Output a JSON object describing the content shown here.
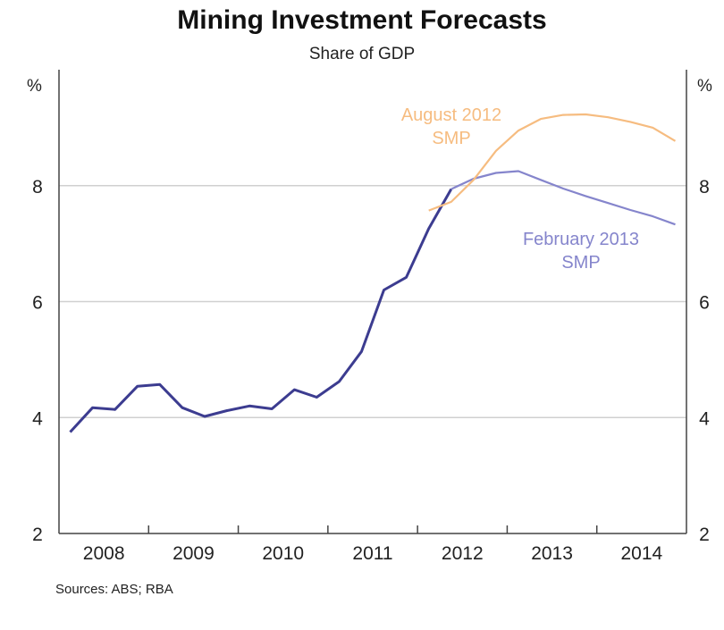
{
  "chart_data": {
    "type": "line",
    "title": "Mining Investment Forecasts",
    "subtitle": "Share of GDP",
    "ylabel_left": "%",
    "ylabel_right": "%",
    "ylim": [
      2,
      10
    ],
    "yticks": [
      2,
      4,
      6,
      8
    ],
    "xlim": [
      2008,
      2015
    ],
    "xticks": [
      "2008",
      "2009",
      "2010",
      "2011",
      "2012",
      "2013",
      "2014"
    ],
    "grid": true,
    "source": "Sources: ABS; RBA",
    "series": [
      {
        "key": "actual",
        "color": "#3c3c90",
        "x": [
          "2008-Q1",
          "2008-Q2",
          "2008-Q3",
          "2008-Q4",
          "2009-Q1",
          "2009-Q2",
          "2009-Q3",
          "2009-Q4",
          "2010-Q1",
          "2010-Q2",
          "2010-Q3",
          "2010-Q4",
          "2011-Q1",
          "2011-Q2",
          "2011-Q3",
          "2011-Q4",
          "2012-Q1",
          "2012-Q2"
        ],
        "values": [
          3.75,
          4.17,
          4.14,
          4.54,
          4.57,
          4.17,
          4.02,
          4.12,
          4.2,
          4.15,
          4.48,
          4.35,
          4.62,
          5.14,
          6.2,
          6.42,
          7.26,
          7.94
        ]
      },
      {
        "name": "February 2013 SMP",
        "label": [
          "February 2013",
          "SMP"
        ],
        "color": "#8585cc",
        "x": [
          "2012-Q2",
          "2012-Q3",
          "2012-Q4",
          "2013-Q1",
          "2013-Q2",
          "2013-Q3",
          "2013-Q4",
          "2014-Q1",
          "2014-Q2",
          "2014-Q3",
          "2014-Q4"
        ],
        "values": [
          7.94,
          8.12,
          8.22,
          8.25,
          8.1,
          7.95,
          7.82,
          7.7,
          7.58,
          7.47,
          7.33
        ]
      },
      {
        "name": "August 2012 SMP",
        "label": [
          "August 2012",
          "SMP"
        ],
        "color": "#f6bc80",
        "x": [
          "2012-Q1",
          "2012-Q2",
          "2012-Q3",
          "2012-Q4",
          "2013-Q1",
          "2013-Q2",
          "2013-Q3",
          "2013-Q4",
          "2014-Q1",
          "2014-Q2",
          "2014-Q3",
          "2014-Q4"
        ],
        "values": [
          7.57,
          7.72,
          8.1,
          8.6,
          8.95,
          9.15,
          9.22,
          9.23,
          9.18,
          9.1,
          9.0,
          8.77
        ]
      }
    ]
  }
}
